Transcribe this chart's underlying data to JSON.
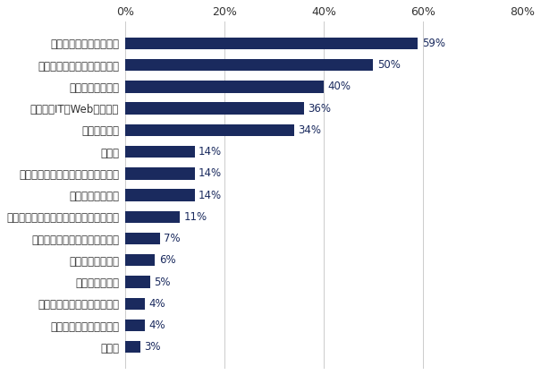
{
  "categories": [
    "その他",
    "技術系（メディアカル）",
    "技術系（化学・素材・食品）",
    "不動産系専門職",
    "クリエイティブ系",
    "技術系（電気・電子・半導体）",
    "技術系（建築・設備・土木・プラント）",
    "サービス・流通系",
    "技術系（機械・メカトロ・自動車）",
    "金融系",
    "事務・管理系",
    "技術系（IT・Web・通信）",
    "コンサルタント系",
    "経営・経営企画・事業企画系",
    "営業・マーケティング系"
  ],
  "values": [
    3,
    4,
    4,
    5,
    6,
    7,
    11,
    14,
    14,
    14,
    34,
    36,
    40,
    50,
    59
  ],
  "bar_color": "#1a2a5e",
  "label_color": "#1a2a5e",
  "background_color": "#ffffff",
  "xlim": [
    0,
    80
  ],
  "xticks": [
    0,
    20,
    40,
    60,
    80
  ],
  "xtick_labels": [
    "0%",
    "20%",
    "40%",
    "60%",
    "80%"
  ],
  "bar_height": 0.55,
  "figsize": [
    6.05,
    4.19
  ],
  "dpi": 100,
  "label_fontsize": 8.5,
  "tick_fontsize": 9
}
